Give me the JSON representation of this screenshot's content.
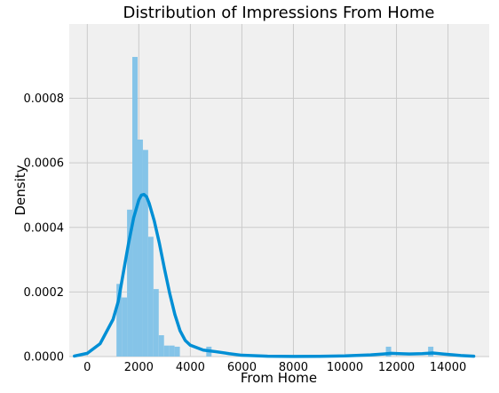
{
  "chart_data": {
    "type": "bar",
    "title": "Distribution of Impressions From Home",
    "xlabel": "From Home",
    "ylabel": "Density",
    "xlim": [
      -700,
      15600
    ],
    "ylim": [
      0,
      0.00103
    ],
    "x_ticks": [
      0,
      2000,
      4000,
      6000,
      8000,
      10000,
      12000,
      14000
    ],
    "x_tick_labels": [
      "0",
      "2000",
      "4000",
      "6000",
      "8000",
      "10000",
      "12000",
      "14000"
    ],
    "y_ticks": [
      0,
      0.0002,
      0.0004,
      0.0006,
      0.0008
    ],
    "y_tick_labels": [
      "0.0000",
      "0.0002",
      "0.0004",
      "0.0006",
      "0.0008"
    ],
    "grid": true,
    "colors": {
      "background": "#f0f0f0",
      "grid": "#cbcbcb",
      "bars": "#85c4e8",
      "kde_line": "#008fd5"
    },
    "histogram": {
      "bin_start": 1133,
      "bin_width": 205,
      "densities": [
        0.000225,
        0.000183,
        0.000455,
        0.000928,
        0.000672,
        0.00064,
        0.000371,
        0.000209,
        6.6e-05,
        3.4e-05,
        3.4e-05,
        3.05e-05,
        0,
        0,
        0,
        0,
        0,
        3.05e-05,
        0,
        0,
        0,
        0,
        0,
        0,
        0,
        0,
        0,
        0,
        0,
        0,
        0,
        0,
        0,
        0,
        0,
        0,
        0,
        0,
        0,
        0,
        0,
        0,
        0,
        0,
        0,
        0,
        0,
        0,
        0,
        0,
        0,
        3.05e-05,
        0,
        0,
        0,
        0,
        0,
        0,
        0,
        3.05e-05
      ]
    },
    "kde": {
      "x": [
        -500,
        0,
        500,
        1000,
        1200,
        1400,
        1600,
        1800,
        2000,
        2100,
        2200,
        2300,
        2400,
        2600,
        2800,
        3000,
        3200,
        3400,
        3600,
        3800,
        4000,
        4500,
        5000,
        5500,
        6000,
        7000,
        8000,
        9000,
        10000,
        11000,
        11500,
        11800,
        12100,
        12500,
        13000,
        13400,
        13800,
        14500,
        15000
      ],
      "y": [
        1.5e-06,
        1e-05,
        4e-05,
        0.000115,
        0.00017,
        0.00026,
        0.00035,
        0.00043,
        0.000485,
        0.0005,
        0.000502,
        0.000495,
        0.000475,
        0.00042,
        0.00035,
        0.00027,
        0.000195,
        0.00013,
        8e-05,
        5e-05,
        3.5e-05,
        2e-05,
        1.5e-05,
        9e-06,
        4e-06,
        1e-06,
        5e-07,
        8e-07,
        2e-06,
        5e-06,
        8e-06,
        1e-05,
        9e-06,
        8e-06,
        9e-06,
        1.1e-05,
        8e-06,
        3e-06,
        1e-06
      ]
    }
  }
}
